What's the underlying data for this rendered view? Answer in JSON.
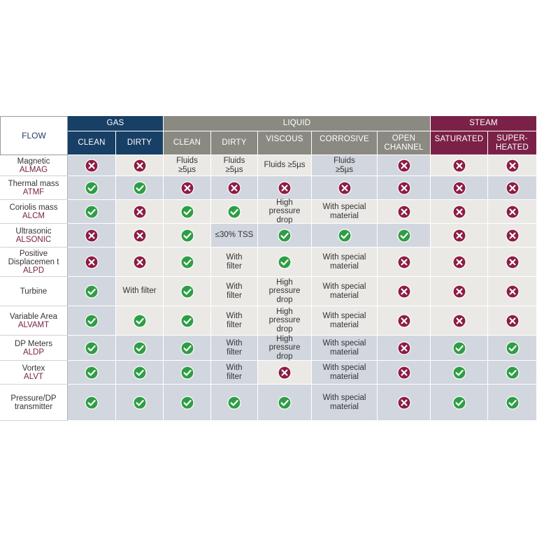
{
  "header": {
    "flow": "FLOW",
    "groups": [
      {
        "key": "gas",
        "label": "GAS"
      },
      {
        "key": "liquid",
        "label": "LIQUID"
      },
      {
        "key": "steam",
        "label": "STEAM"
      }
    ],
    "columns": [
      {
        "group": "gas",
        "label": "CLEAN"
      },
      {
        "group": "gas",
        "label": "DIRTY"
      },
      {
        "group": "liquid",
        "label": "CLEAN"
      },
      {
        "group": "liquid",
        "label": "DIRTY"
      },
      {
        "group": "liquid",
        "label": "VISCOUS"
      },
      {
        "group": "liquid",
        "label": "CORROSIVE"
      },
      {
        "group": "liquid",
        "label": "OPEN\nCHANNEL"
      },
      {
        "group": "steam",
        "label": "SATURATED"
      },
      {
        "group": "steam",
        "label": "SUPER-\nHEATED"
      }
    ]
  },
  "colors": {
    "gas": "#183f66",
    "liquid": "#8a8a82",
    "steam": "#7b2148",
    "check": "#2e9e45",
    "cross": "#8c1d44",
    "cell_gray": "#d2d6de",
    "cell_light": "#ebe9e6"
  },
  "rows": [
    {
      "name": "Magnetic",
      "code": "ALMAG",
      "cells": [
        "X",
        "X",
        "Fluids\n≥5µs",
        "Fluids\n≥5µs",
        "Fluids ≥5µs",
        "Fluids\n≥5µs",
        "X",
        "X",
        "X"
      ]
    },
    {
      "name": "Thermal mass",
      "code": "ATMF",
      "cells": [
        "OK",
        "OK",
        "X",
        "X",
        "X",
        "X",
        "X",
        "X",
        "X"
      ]
    },
    {
      "name": "Coriolis mass",
      "code": "ALCM",
      "cells": [
        "OK",
        "X",
        "OK",
        "OK",
        "High\npressure\ndrop",
        "With special\nmaterial",
        "X",
        "X",
        "X"
      ]
    },
    {
      "name": "Ultrasonic",
      "code": "ALSONIC",
      "cells": [
        "X",
        "X",
        "OK",
        "≤30% TSS",
        "OK",
        "OK",
        "OK",
        "X",
        "X"
      ]
    },
    {
      "name": "Positive\nDisplacemen t",
      "code": "ALPD",
      "cells": [
        "X",
        "X",
        "OK",
        "With\nfilter",
        "OK",
        "With special\nmaterial",
        "X",
        "X",
        "X"
      ]
    },
    {
      "name": "Turbine",
      "code": "",
      "cells": [
        "OK",
        "With filter",
        "OK",
        "With\nfilter",
        "High\npressure\ndrop",
        "With special\nmaterial",
        "X",
        "X",
        "X"
      ]
    },
    {
      "name": "Variable Area",
      "code": "ALVAMT",
      "cells": [
        "OK",
        "OK",
        "OK",
        "With\nfilter",
        "High\npressure\ndrop",
        "With special\nmaterial",
        "X",
        "X",
        "X"
      ]
    },
    {
      "name": "DP Meters",
      "code": "ALDP",
      "cells": [
        "OK",
        "OK",
        "OK",
        "With\nfilter",
        "High\npressure\ndrop",
        "With special\nmaterial",
        "X",
        "OK",
        "OK"
      ]
    },
    {
      "name": "Vortex",
      "code": "ALVT",
      "cells": [
        "OK",
        "OK",
        "OK",
        "With\nfilter",
        "X",
        "With special\nmaterial",
        "X",
        "OK",
        "OK"
      ]
    },
    {
      "name": "Pressure/DP\ntransmitter",
      "code": "",
      "cells": [
        "OK",
        "OK",
        "OK",
        "OK",
        "OK",
        "With special\nmaterial",
        "X",
        "OK",
        "OK"
      ]
    }
  ],
  "shading": [
    [
      "g",
      "w",
      "w",
      "w",
      "w",
      "g",
      "g",
      "w",
      "w"
    ],
    [
      "g",
      "g",
      "g",
      "g",
      "g",
      "g",
      "g",
      "g",
      "g"
    ],
    [
      "g",
      "w",
      "w",
      "w",
      "w",
      "w",
      "w",
      "w",
      "w"
    ],
    [
      "g",
      "w",
      "w",
      "g",
      "g",
      "g",
      "g",
      "w",
      "w"
    ],
    [
      "g",
      "w",
      "w",
      "w",
      "w",
      "w",
      "w",
      "w",
      "w"
    ],
    [
      "g",
      "w",
      "w",
      "w",
      "w",
      "w",
      "w",
      "w",
      "w"
    ],
    [
      "g",
      "w",
      "w",
      "w",
      "w",
      "w",
      "w",
      "w",
      "w"
    ],
    [
      "g",
      "g",
      "g",
      "g",
      "g",
      "g",
      "g",
      "g",
      "g"
    ],
    [
      "g",
      "g",
      "g",
      "g",
      "w",
      "g",
      "g",
      "g",
      "g"
    ],
    [
      "g",
      "g",
      "g",
      "g",
      "g",
      "g",
      "g",
      "g",
      "g"
    ]
  ]
}
